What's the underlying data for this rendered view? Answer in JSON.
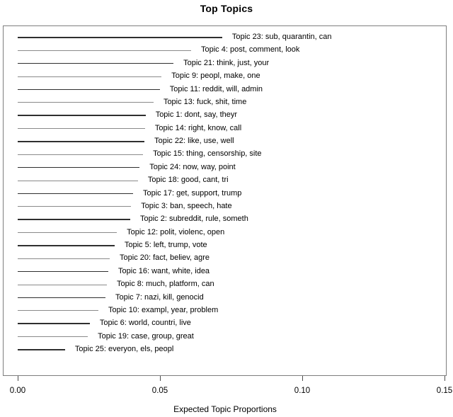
{
  "figure": {
    "title": "Top Topics",
    "xlabel": "Expected Topic Proportions"
  },
  "chart_data": {
    "type": "bar",
    "subtype": "horizontal-line-dotchart (R stm plot.STM summary)",
    "title": "Top Topics",
    "xlabel": "Expected Topic Proportions",
    "ylabel": "",
    "xlim": [
      0,
      0.15
    ],
    "grid": false,
    "legend": "none",
    "xticks": [
      {
        "value": 0.0,
        "label": "0.00"
      },
      {
        "value": 0.05,
        "label": "0.05"
      },
      {
        "value": 0.1,
        "label": "0.10"
      },
      {
        "value": 0.15,
        "label": "0.15"
      }
    ],
    "categories": [
      "Topic 23: sub, quarantin, can",
      "Topic 4: post, comment, look",
      "Topic 21: think, just, your",
      "Topic 9: peopl, make, one",
      "Topic 11: reddit, will, admin",
      "Topic 13: fuck, shit, time",
      "Topic 1: dont, say, theyr",
      "Topic 14: right, know, call",
      "Topic 22: like, use, well",
      "Topic 15: thing, censorship, site",
      "Topic 24: now, way, point",
      "Topic 18: good, cant, tri",
      "Topic 17: get, support, trump",
      "Topic 3: ban, speech, hate",
      "Topic 2: subreddit, rule, someth",
      "Topic 12: polit, violenc, open",
      "Topic 5: left, trump, vote",
      "Topic 20: fact, believ, agre",
      "Topic 16: want, white, idea",
      "Topic 8: much, platform, can",
      "Topic 7: nazi, kill, genocid",
      "Topic 10: exampl, year, problem",
      "Topic 6: world, countri, live",
      "Topic 19: case, group, great",
      "Topic 25: everyon, els, peopl"
    ],
    "values": [
      0.0716,
      0.0607,
      0.0545,
      0.0503,
      0.0497,
      0.0475,
      0.0447,
      0.0445,
      0.0443,
      0.0438,
      0.0426,
      0.042,
      0.0403,
      0.0396,
      0.0393,
      0.0346,
      0.0338,
      0.0321,
      0.0316,
      0.0311,
      0.0306,
      0.0281,
      0.0251,
      0.0244,
      0.0164
    ]
  },
  "colors": {
    "line": "#2f2f2f",
    "line_soft": "#8a8a8a",
    "box_border": "#7e7e7e",
    "text": "#000000",
    "background": "#ffffff"
  }
}
